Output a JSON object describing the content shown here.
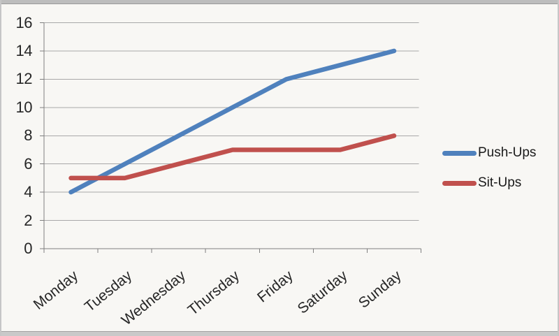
{
  "chart_data": {
    "type": "line",
    "title": "",
    "xlabel": "",
    "ylabel": "",
    "categories": [
      "Monday",
      "Tuesday",
      "Wednesday",
      "Thursday",
      "Friday",
      "Saturday",
      "Sunday"
    ],
    "series": [
      {
        "name": "Push-Ups",
        "color": "#4f81bd",
        "values": [
          4,
          6,
          8,
          10,
          12,
          13,
          14
        ]
      },
      {
        "name": "Sit-Ups",
        "color": "#c0504d",
        "values": [
          5,
          5,
          6,
          7,
          7,
          7,
          8
        ]
      }
    ],
    "ylim": [
      0,
      16
    ],
    "yticks": [
      0,
      2,
      4,
      6,
      8,
      10,
      12,
      14,
      16
    ],
    "grid": true,
    "legend_position": "right",
    "x_label_rotation_deg": -39,
    "colors": {
      "gridline": "#a8a8a8",
      "axis": "#7f7f7f",
      "text": "#262626",
      "background": "#f8f7f4"
    }
  }
}
